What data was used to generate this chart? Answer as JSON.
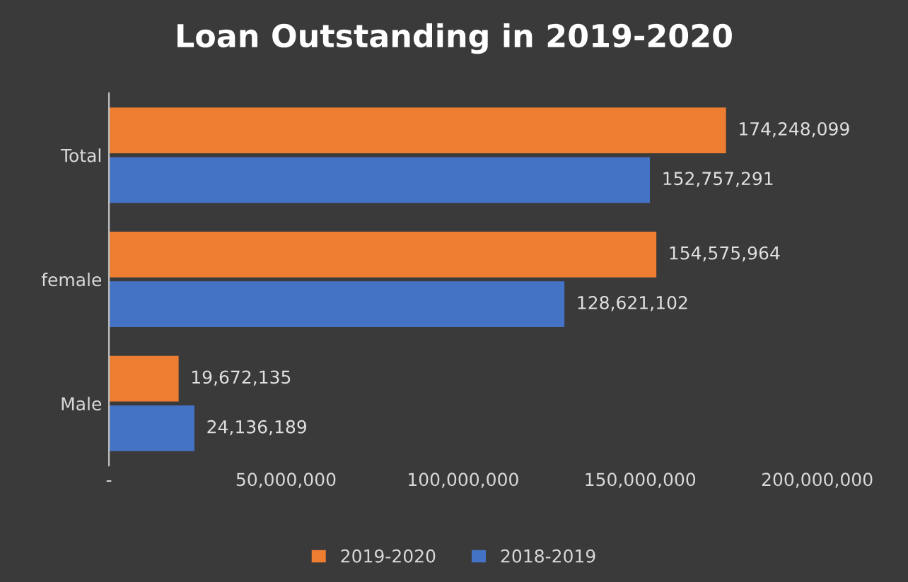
{
  "chart_data": {
    "type": "bar",
    "orientation": "horizontal",
    "title": "Loan Outstanding in 2019-2020",
    "categories": [
      "Total",
      "female",
      "Male"
    ],
    "series": [
      {
        "name": "2019-2020",
        "color": "#ed7d31",
        "values": [
          174248099,
          154575964,
          19672135
        ],
        "value_labels": [
          "174,248,099",
          "154,575,964",
          "19,672,135"
        ]
      },
      {
        "name": "2018-2019",
        "color": "#4472c4",
        "values": [
          152757291,
          128621102,
          24136189
        ],
        "value_labels": [
          "152,757,291",
          "128,621,102",
          "24,136,189"
        ]
      }
    ],
    "xlim": [
      0,
      200000000
    ],
    "xticks": [
      {
        "value": 0,
        "label": "-"
      },
      {
        "value": 50000000,
        "label": "50,000,000"
      },
      {
        "value": 100000000,
        "label": "100,000,000"
      },
      {
        "value": 150000000,
        "label": "150,000,000"
      },
      {
        "value": 200000000,
        "label": "200,000,000"
      }
    ],
    "legend": "bottom",
    "grid": false
  }
}
